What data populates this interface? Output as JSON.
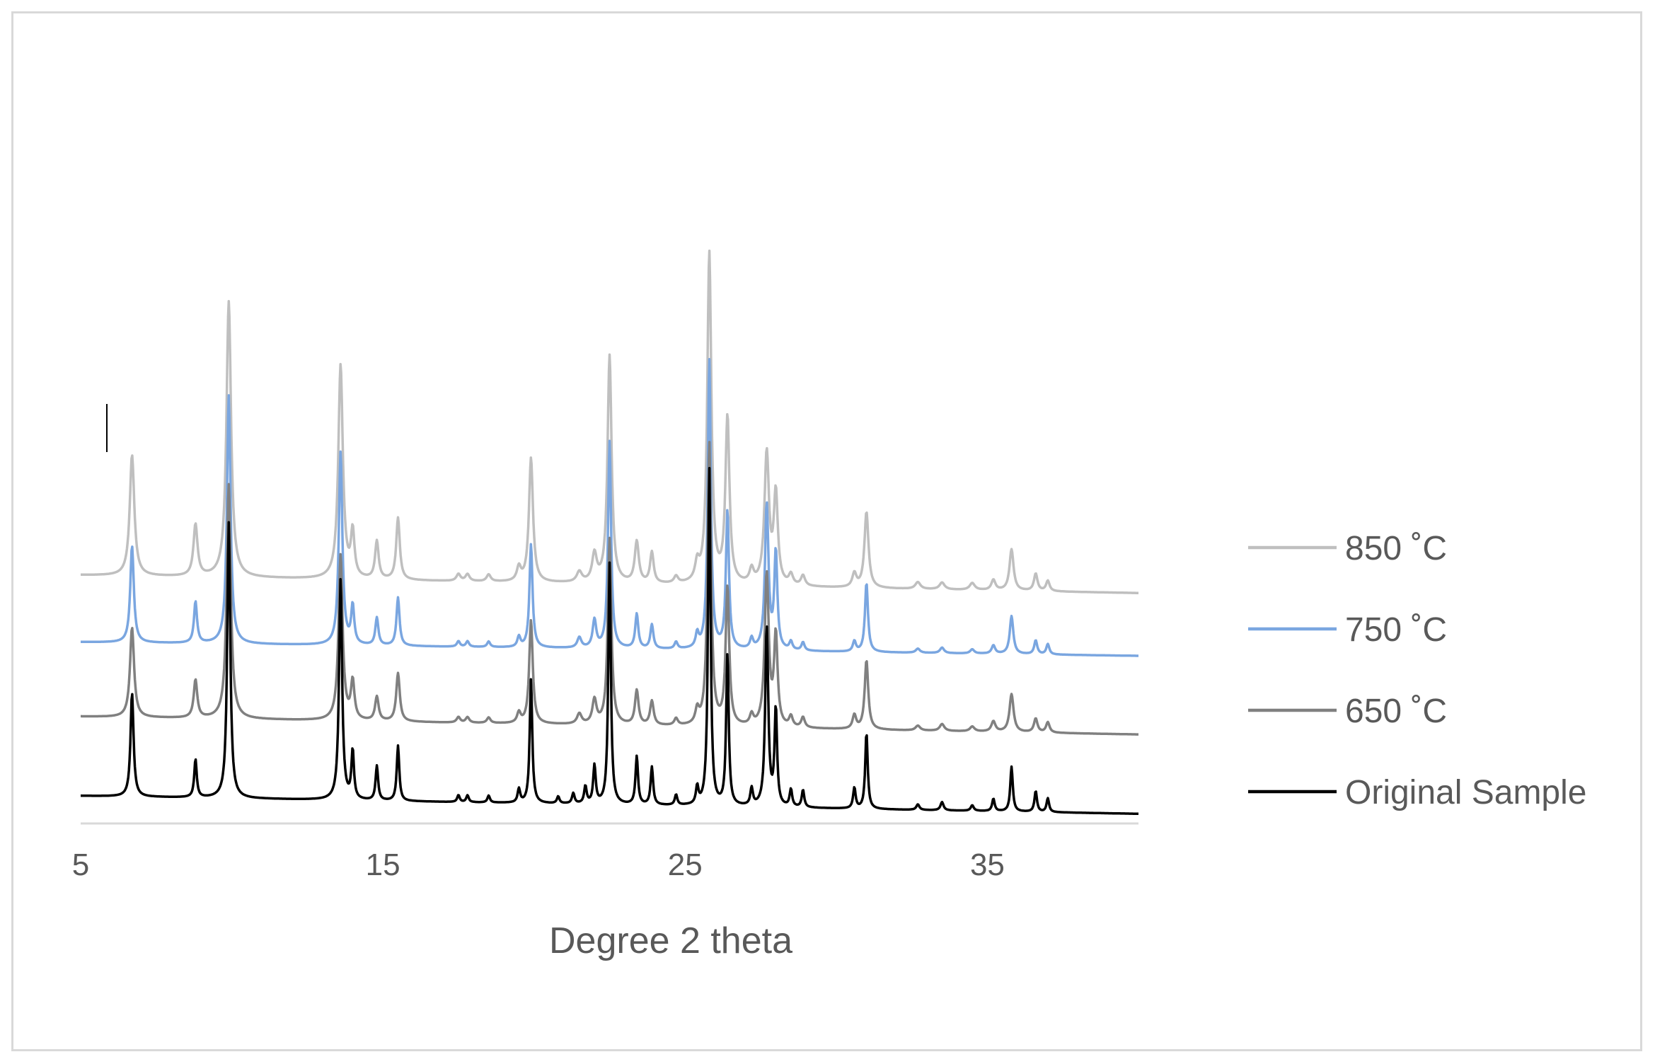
{
  "chart_data": {
    "type": "line",
    "title": "",
    "xlabel": "Degree 2 theta",
    "ylabel": "",
    "xlim": [
      5,
      40
    ],
    "ylim": [
      0,
      100
    ],
    "xticks": [
      5,
      15,
      25,
      35
    ],
    "grid": false,
    "legend_position": "right",
    "series": [
      {
        "name": "850 ˚C",
        "color": "#bfbfbf",
        "baseline": 36,
        "slope": -2.6,
        "peaks": [
          [
            6.7,
            17.5,
            0.09
          ],
          [
            8.8,
            7.5,
            0.08
          ],
          [
            9.9,
            40,
            0.09
          ],
          [
            13.6,
            31,
            0.09
          ],
          [
            14.0,
            6.5,
            0.07
          ],
          [
            14.8,
            5.5,
            0.07
          ],
          [
            15.5,
            9,
            0.07
          ],
          [
            17.5,
            1,
            0.08
          ],
          [
            17.8,
            1,
            0.08
          ],
          [
            18.5,
            1,
            0.08
          ],
          [
            19.5,
            2,
            0.08
          ],
          [
            19.9,
            18,
            0.08
          ],
          [
            21.5,
            1.5,
            0.1
          ],
          [
            22.0,
            4,
            0.09
          ],
          [
            22.5,
            33,
            0.08
          ],
          [
            23.4,
            6,
            0.08
          ],
          [
            23.9,
            4.5,
            0.07
          ],
          [
            24.7,
            1,
            0.08
          ],
          [
            25.4,
            2.5,
            0.08
          ],
          [
            25.8,
            48,
            0.08
          ],
          [
            26.4,
            24,
            0.08
          ],
          [
            27.2,
            2,
            0.08
          ],
          [
            27.7,
            19,
            0.09
          ],
          [
            28.0,
            13,
            0.08
          ],
          [
            28.5,
            1.5,
            0.08
          ],
          [
            28.9,
            1.5,
            0.08
          ],
          [
            30.6,
            2,
            0.08
          ],
          [
            31.0,
            11,
            0.08
          ],
          [
            32.7,
            1,
            0.1
          ],
          [
            33.5,
            1,
            0.1
          ],
          [
            34.5,
            1,
            0.1
          ],
          [
            35.2,
            1.5,
            0.08
          ],
          [
            35.8,
            6,
            0.08
          ],
          [
            36.6,
            2.5,
            0.07
          ],
          [
            37.0,
            1.5,
            0.07
          ]
        ]
      },
      {
        "name": "750 ˚C",
        "color": "#7aa6e0",
        "baseline": 26.3,
        "slope": -2.0,
        "peaks": [
          [
            6.7,
            14,
            0.07
          ],
          [
            8.8,
            6,
            0.06
          ],
          [
            9.9,
            36,
            0.07
          ],
          [
            13.6,
            28,
            0.07
          ],
          [
            14.0,
            5.5,
            0.06
          ],
          [
            14.8,
            4,
            0.06
          ],
          [
            15.5,
            7,
            0.06
          ],
          [
            17.5,
            0.8,
            0.06
          ],
          [
            17.8,
            0.8,
            0.06
          ],
          [
            18.5,
            0.8,
            0.06
          ],
          [
            19.5,
            1.5,
            0.06
          ],
          [
            19.9,
            15,
            0.06
          ],
          [
            21.5,
            1.5,
            0.08
          ],
          [
            22.0,
            4,
            0.07
          ],
          [
            22.5,
            30,
            0.06
          ],
          [
            23.4,
            5,
            0.06
          ],
          [
            23.9,
            3.5,
            0.06
          ],
          [
            24.7,
            1,
            0.06
          ],
          [
            25.4,
            2,
            0.06
          ],
          [
            25.8,
            42,
            0.06
          ],
          [
            26.4,
            20,
            0.06
          ],
          [
            27.2,
            1.5,
            0.06
          ],
          [
            27.7,
            21,
            0.07
          ],
          [
            28.0,
            14,
            0.06
          ],
          [
            28.5,
            1.2,
            0.06
          ],
          [
            28.9,
            1.2,
            0.06
          ],
          [
            30.6,
            1.5,
            0.06
          ],
          [
            31.0,
            10,
            0.06
          ],
          [
            32.7,
            0.6,
            0.08
          ],
          [
            33.5,
            0.8,
            0.08
          ],
          [
            34.5,
            0.6,
            0.08
          ],
          [
            35.2,
            1.2,
            0.07
          ],
          [
            35.8,
            5.5,
            0.07
          ],
          [
            36.6,
            2,
            0.06
          ],
          [
            37.0,
            1.5,
            0.06
          ]
        ]
      },
      {
        "name": "650 ˚C",
        "color": "#808080",
        "baseline": 15.5,
        "slope": -2.6,
        "peaks": [
          [
            6.7,
            13,
            0.08
          ],
          [
            8.8,
            5.5,
            0.07
          ],
          [
            9.9,
            34,
            0.08
          ],
          [
            13.6,
            24,
            0.08
          ],
          [
            14.0,
            5.5,
            0.07
          ],
          [
            14.8,
            3.5,
            0.07
          ],
          [
            15.5,
            7,
            0.07
          ],
          [
            17.5,
            0.8,
            0.07
          ],
          [
            17.8,
            0.8,
            0.07
          ],
          [
            18.5,
            0.8,
            0.07
          ],
          [
            19.5,
            1.5,
            0.07
          ],
          [
            19.9,
            15,
            0.07
          ],
          [
            21.5,
            1.5,
            0.09
          ],
          [
            22.0,
            3.5,
            0.08
          ],
          [
            22.5,
            27,
            0.07
          ],
          [
            23.4,
            5,
            0.07
          ],
          [
            23.9,
            3.5,
            0.07
          ],
          [
            24.7,
            1,
            0.07
          ],
          [
            25.4,
            2,
            0.07
          ],
          [
            25.8,
            41,
            0.07
          ],
          [
            26.4,
            20,
            0.07
          ],
          [
            27.2,
            1.5,
            0.07
          ],
          [
            27.7,
            22,
            0.08
          ],
          [
            28.0,
            13,
            0.07
          ],
          [
            28.5,
            1.5,
            0.07
          ],
          [
            28.9,
            1.5,
            0.07
          ],
          [
            30.6,
            2,
            0.07
          ],
          [
            31.0,
            10,
            0.07
          ],
          [
            32.7,
            0.7,
            0.09
          ],
          [
            33.5,
            1,
            0.09
          ],
          [
            34.5,
            0.7,
            0.09
          ],
          [
            35.2,
            1.5,
            0.08
          ],
          [
            35.8,
            5.5,
            0.08
          ],
          [
            36.6,
            2,
            0.07
          ],
          [
            37.0,
            1.5,
            0.07
          ]
        ]
      },
      {
        "name": "Original Sample",
        "color": "#000000",
        "baseline": 4.0,
        "slope": -2.6,
        "peaks": [
          [
            6.7,
            15,
            0.06
          ],
          [
            8.8,
            5.5,
            0.05
          ],
          [
            9.9,
            40,
            0.06
          ],
          [
            13.6,
            32,
            0.06
          ],
          [
            14.0,
            7,
            0.05
          ],
          [
            14.8,
            5,
            0.05
          ],
          [
            15.5,
            8,
            0.05
          ],
          [
            17.5,
            1,
            0.05
          ],
          [
            17.8,
            1,
            0.05
          ],
          [
            18.5,
            1,
            0.05
          ],
          [
            19.5,
            2,
            0.05
          ],
          [
            19.9,
            18,
            0.05
          ],
          [
            20.8,
            1,
            0.05
          ],
          [
            21.3,
            1.5,
            0.05
          ],
          [
            21.7,
            2.5,
            0.05
          ],
          [
            22.0,
            5.5,
            0.05
          ],
          [
            22.5,
            35,
            0.05
          ],
          [
            23.4,
            7,
            0.05
          ],
          [
            23.9,
            5.5,
            0.05
          ],
          [
            24.7,
            1.5,
            0.05
          ],
          [
            25.4,
            2.5,
            0.05
          ],
          [
            25.8,
            49,
            0.05
          ],
          [
            26.4,
            22,
            0.05
          ],
          [
            27.2,
            2.5,
            0.05
          ],
          [
            27.7,
            26,
            0.06
          ],
          [
            28.0,
            14,
            0.05
          ],
          [
            28.5,
            2.5,
            0.05
          ],
          [
            28.9,
            2.5,
            0.05
          ],
          [
            30.6,
            3,
            0.05
          ],
          [
            31.0,
            11,
            0.05
          ],
          [
            32.7,
            0.8,
            0.06
          ],
          [
            33.5,
            1.2,
            0.06
          ],
          [
            34.5,
            0.8,
            0.06
          ],
          [
            35.2,
            1.8,
            0.05
          ],
          [
            35.8,
            6.5,
            0.05
          ],
          [
            36.6,
            3,
            0.05
          ],
          [
            37.0,
            2,
            0.05
          ]
        ]
      }
    ]
  }
}
